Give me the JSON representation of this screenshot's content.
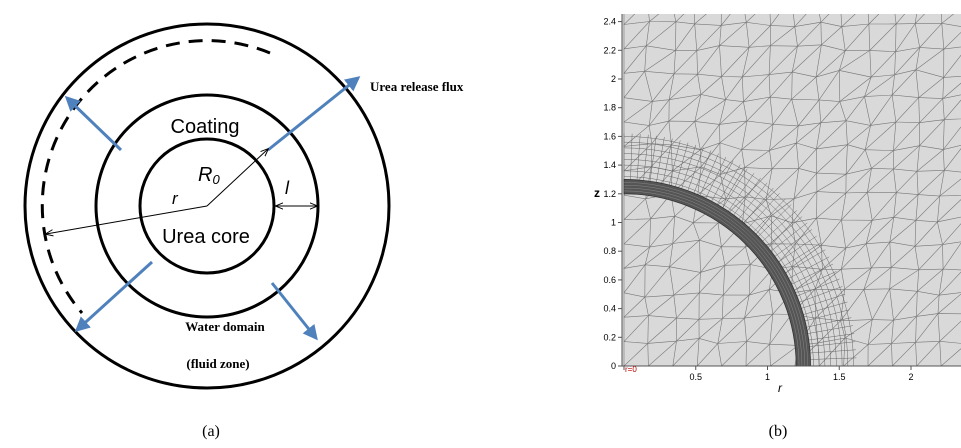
{
  "panel_a": {
    "coating": "Coating",
    "core": "Urea core",
    "r0_base": "R",
    "r0_sub": "0",
    "r_label": "r",
    "l_label": "l",
    "flux": "Urea release flux",
    "water_line1": "Water domain",
    "water_line2": "(fluid zone)",
    "caption": "(a)"
  },
  "panel_b": {
    "caption": "(b)",
    "x_label": "r",
    "y_label": "z",
    "origin_label": "r=0",
    "xticks": [
      0,
      0.5,
      1,
      1.5,
      2
    ],
    "yticks": [
      0,
      0.2,
      0.4,
      0.6,
      0.8,
      1,
      1.2,
      1.4,
      1.6,
      1.8,
      2,
      2.2,
      2.4
    ]
  }
}
